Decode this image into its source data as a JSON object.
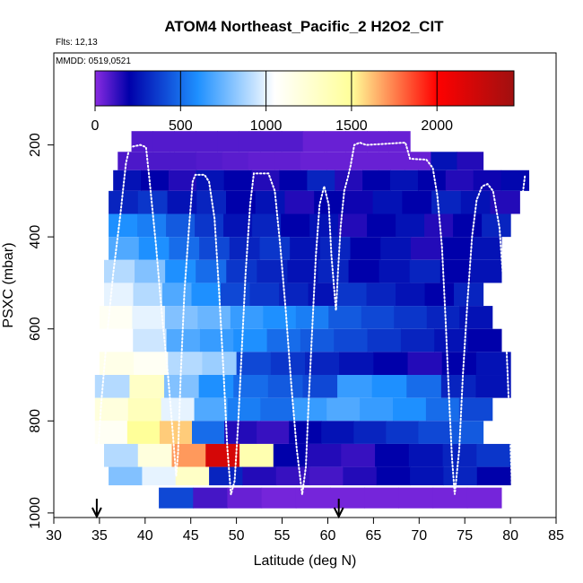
{
  "chart_data": {
    "type": "heatmap",
    "title": "ATOM4 Northeast_Pacific_2 H2O2_CIT",
    "flights_label": "Flts: 12,13",
    "dates_label": "MMDD: 0519,0521",
    "xlabel": "Latitude (deg N)",
    "ylabel": "PSXC (mbar)",
    "xlim": [
      30,
      85
    ],
    "ylim": [
      1010,
      0
    ],
    "x_ticks": [
      30,
      35,
      40,
      45,
      50,
      55,
      60,
      65,
      70,
      75,
      80,
      85
    ],
    "y_ticks": [
      200,
      400,
      600,
      800,
      1000
    ],
    "colorbar": {
      "min": 0,
      "max": 2450,
      "ticks": [
        0,
        500,
        1000,
        1500,
        2000
      ],
      "stops": [
        "#8a2be2",
        "#0000aa",
        "#1e90ff",
        "#ffffff",
        "#ffff99",
        "#ff0000",
        "#a01010"
      ],
      "stop_values": [
        0,
        200,
        600,
        1050,
        1500,
        2000,
        2450
      ]
    },
    "markers_lat": [
      34.7,
      61.2
    ],
    "layers": [
      {
        "p": [
          170,
          215
        ],
        "lat": [
          38.5,
          69
        ],
        "values": [
          80,
          80,
          80,
          80,
          80,
          80,
          80,
          80,
          50,
          50,
          50,
          50,
          50
        ]
      },
      {
        "p": [
          215,
          255
        ],
        "lat": [
          37,
          77
        ],
        "values": [
          90,
          90,
          90,
          80,
          70,
          60,
          60,
          50,
          50,
          50,
          50,
          50,
          250,
          150
        ]
      },
      {
        "p": [
          255,
          300
        ],
        "lat": [
          36.5,
          82
        ],
        "values": [
          250,
          200,
          150,
          250,
          200,
          150,
          200,
          300,
          150,
          200,
          250,
          200,
          150,
          180,
          220
        ]
      },
      {
        "p": [
          300,
          350
        ],
        "lat": [
          36,
          81
        ],
        "values": [
          300,
          350,
          250,
          300,
          200,
          250,
          150,
          200,
          180,
          250,
          200,
          300,
          250,
          150
        ]
      },
      {
        "p": [
          350,
          400
        ],
        "lat": [
          36,
          80
        ],
        "values": [
          600,
          550,
          450,
          350,
          250,
          300,
          200,
          250,
          150,
          200,
          250,
          150,
          200,
          300
        ]
      },
      {
        "p": [
          400,
          450
        ],
        "lat": [
          36,
          79
        ],
        "values": [
          700,
          600,
          500,
          400,
          300,
          350,
          250,
          300,
          200,
          250,
          150,
          200,
          250
        ]
      },
      {
        "p": [
          450,
          500
        ],
        "lat": [
          35.5,
          79
        ],
        "values": [
          900,
          800,
          600,
          500,
          350,
          300,
          250,
          300,
          200,
          250,
          300,
          200,
          250
        ]
      },
      {
        "p": [
          500,
          550
        ],
        "lat": [
          35.5,
          77
        ],
        "values": [
          1000,
          900,
          700,
          600,
          400,
          350,
          300,
          250,
          350,
          300,
          250,
          200,
          300
        ]
      },
      {
        "p": [
          550,
          600
        ],
        "lat": [
          35,
          78
        ],
        "values": [
          1100,
          1000,
          800,
          750,
          650,
          600,
          550,
          450,
          400,
          350,
          300,
          250
        ]
      },
      {
        "p": [
          600,
          650
        ],
        "lat": [
          35,
          79
        ],
        "values": [
          1050,
          950,
          700,
          650,
          600,
          500,
          450,
          400,
          350,
          300,
          250,
          200
        ]
      },
      {
        "p": [
          650,
          700
        ],
        "lat": [
          35,
          80
        ],
        "values": [
          1150,
          1100,
          900,
          850,
          400,
          350,
          300,
          250,
          200,
          150,
          200,
          250
        ]
      },
      {
        "p": [
          700,
          750
        ],
        "lat": [
          34.5,
          80
        ],
        "values": [
          900,
          1300,
          800,
          600,
          500,
          450,
          400,
          650,
          600,
          500,
          300,
          250
        ]
      },
      {
        "p": [
          750,
          800
        ],
        "lat": [
          34.5,
          78
        ],
        "values": [
          1200,
          1350,
          1000,
          700,
          550,
          500,
          650,
          700,
          650,
          600,
          500,
          400
        ]
      },
      {
        "p": [
          800,
          850
        ],
        "lat": [
          34.5,
          77
        ],
        "values": [
          1100,
          1500,
          1600,
          500,
          150,
          120,
          200,
          250,
          300,
          350,
          400,
          450
        ]
      },
      {
        "p": [
          850,
          900
        ],
        "lat": [
          35.5,
          80
        ],
        "values": [
          900,
          1200,
          1700,
          2200,
          1400,
          200,
          150,
          120,
          200,
          250,
          300,
          350
        ]
      },
      {
        "p": [
          900,
          940
        ],
        "lat": [
          36,
          80
        ],
        "values": [
          800,
          1000,
          1300,
          300,
          150,
          120,
          100,
          150,
          200,
          250,
          300,
          200
        ]
      },
      {
        "p": [
          945,
          990
        ],
        "lat": [
          41.5,
          79
        ],
        "values": [
          400,
          100,
          50,
          30,
          30,
          30,
          30,
          30,
          30,
          30
        ]
      }
    ]
  }
}
